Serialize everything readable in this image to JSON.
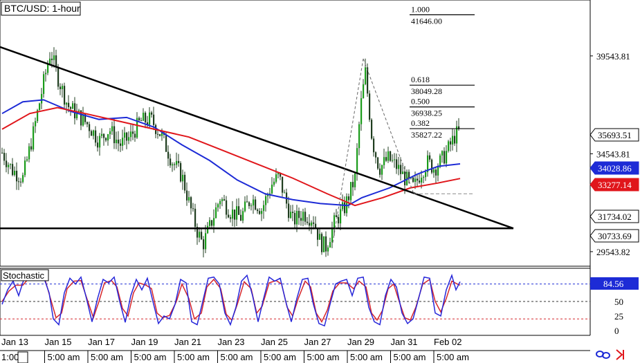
{
  "colors": {
    "up_candle": "#1a9b1a",
    "down_candle": "#1f3d1f",
    "ma_fast": "#1d2bd6",
    "ma_slow": "#e0161b",
    "trendline": "#000000",
    "fib_line": "#000000",
    "stoch_k": "#2626d9",
    "stoch_d": "#d6262b",
    "level_80": "#1d2bd6",
    "level_50": "#333333",
    "level_20": "#d6262b"
  },
  "chart_data": [
    {
      "type": "candlestick",
      "title": "BTC/USD: 1-hour",
      "price_scale": {
        "ylim": [
          28800,
          42400
        ],
        "tick_labels": [
          "39543.81",
          "34543.81",
          "29543.82"
        ]
      },
      "price_badges": [
        {
          "value": "35693.51",
          "style": "current"
        },
        {
          "value": "34028.86",
          "style": "blue"
        },
        {
          "value": "33277.14",
          "style": "red"
        },
        {
          "value": "31734.02",
          "style": "plain"
        },
        {
          "value": "30733.69",
          "style": "plain"
        }
      ],
      "fibonacci": [
        {
          "ratio": "1.000",
          "price": "41646.00"
        },
        {
          "ratio": "0.618",
          "price": "38049.28"
        },
        {
          "ratio": "0.500",
          "price": "36938.25"
        },
        {
          "ratio": "0.382",
          "price": "35827.22"
        }
      ],
      "horizontal_support": 30733.69,
      "close_path": [
        [
          0,
          34600
        ],
        [
          15,
          33700
        ],
        [
          30,
          33300
        ],
        [
          45,
          35600
        ],
        [
          60,
          38200
        ],
        [
          70,
          39800
        ],
        [
          80,
          38500
        ],
        [
          95,
          37000
        ],
        [
          110,
          36500
        ],
        [
          125,
          36000
        ],
        [
          140,
          35200
        ],
        [
          155,
          35800
        ],
        [
          170,
          35000
        ],
        [
          185,
          35400
        ],
        [
          200,
          36200
        ],
        [
          215,
          36300
        ],
        [
          230,
          35500
        ],
        [
          245,
          34200
        ],
        [
          260,
          33400
        ],
        [
          272,
          31800
        ],
        [
          282,
          30600
        ],
        [
          290,
          29900
        ],
        [
          300,
          30800
        ],
        [
          315,
          32300
        ],
        [
          330,
          31600
        ],
        [
          345,
          31300
        ],
        [
          360,
          32300
        ],
        [
          375,
          31700
        ],
        [
          390,
          33000
        ],
        [
          400,
          33400
        ],
        [
          410,
          32100
        ],
        [
          420,
          31100
        ],
        [
          435,
          31500
        ],
        [
          450,
          31200
        ],
        [
          460,
          30000
        ],
        [
          468,
          29800
        ],
        [
          480,
          31000
        ],
        [
          495,
          31800
        ],
        [
          510,
          33300
        ],
        [
          518,
          36900
        ],
        [
          525,
          38700
        ],
        [
          535,
          35200
        ],
        [
          545,
          33800
        ],
        [
          558,
          34300
        ],
        [
          570,
          33900
        ],
        [
          582,
          33300
        ],
        [
          595,
          32800
        ],
        [
          605,
          33600
        ],
        [
          615,
          34100
        ],
        [
          625,
          33800
        ],
        [
          635,
          34200
        ],
        [
          645,
          34800
        ],
        [
          655,
          35500
        ],
        [
          662,
          35700
        ]
      ],
      "ma_fast": [
        [
          0,
          36600
        ],
        [
          30,
          37200
        ],
        [
          60,
          37300
        ],
        [
          100,
          36700
        ],
        [
          140,
          36300
        ],
        [
          180,
          36400
        ],
        [
          220,
          35900
        ],
        [
          260,
          35000
        ],
        [
          300,
          34200
        ],
        [
          340,
          33200
        ],
        [
          380,
          32500
        ],
        [
          420,
          32200
        ],
        [
          460,
          32000
        ],
        [
          500,
          31900
        ],
        [
          520,
          32300
        ],
        [
          560,
          32800
        ],
        [
          600,
          33500
        ],
        [
          630,
          33900
        ],
        [
          662,
          34030
        ]
      ],
      "ma_slow": [
        [
          0,
          35800
        ],
        [
          40,
          36600
        ],
        [
          80,
          36900
        ],
        [
          120,
          36600
        ],
        [
          170,
          36200
        ],
        [
          220,
          35800
        ],
        [
          270,
          35400
        ],
        [
          320,
          34700
        ],
        [
          370,
          34000
        ],
        [
          420,
          33300
        ],
        [
          470,
          32500
        ],
        [
          510,
          31900
        ],
        [
          550,
          32300
        ],
        [
          590,
          32800
        ],
        [
          630,
          33050
        ],
        [
          662,
          33280
        ]
      ],
      "x_labels": [
        "Jan 13",
        "Jan 15",
        "Jan 17",
        "Jan 19",
        "Jan 21",
        "Jan 23",
        "Jan 25",
        "Jan 27",
        "Jan 29",
        "Jan 31",
        "Feb 02"
      ],
      "time_labels": [
        "1:00",
        "5:00 am",
        "5:00 am",
        "5:00 am",
        "5:00 am",
        "5:00 am",
        "5:00 am",
        "5:00 am",
        "5:00 am",
        "5:00 am",
        "5:00 am"
      ]
    },
    {
      "type": "line",
      "title": "Stochastic",
      "ylim": [
        0,
        100
      ],
      "tick_labels": [
        "50",
        "25",
        "0"
      ],
      "levels": [
        80,
        50,
        20
      ],
      "current_value": "84.56",
      "k_path": [
        [
          0,
          45
        ],
        [
          8,
          70
        ],
        [
          16,
          85
        ],
        [
          24,
          60
        ],
        [
          32,
          90
        ],
        [
          40,
          97
        ],
        [
          50,
          95
        ],
        [
          60,
          92
        ],
        [
          68,
          65
        ],
        [
          74,
          20
        ],
        [
          82,
          10
        ],
        [
          90,
          65
        ],
        [
          98,
          90
        ],
        [
          106,
          80
        ],
        [
          114,
          92
        ],
        [
          122,
          55
        ],
        [
          130,
          15
        ],
        [
          138,
          55
        ],
        [
          146,
          88
        ],
        [
          154,
          82
        ],
        [
          162,
          92
        ],
        [
          170,
          50
        ],
        [
          178,
          14
        ],
        [
          186,
          60
        ],
        [
          194,
          88
        ],
        [
          202,
          70
        ],
        [
          210,
          90
        ],
        [
          218,
          50
        ],
        [
          226,
          12
        ],
        [
          234,
          25
        ],
        [
          242,
          20
        ],
        [
          250,
          45
        ],
        [
          258,
          88
        ],
        [
          266,
          82
        ],
        [
          274,
          15
        ],
        [
          282,
          10
        ],
        [
          290,
          50
        ],
        [
          298,
          90
        ],
        [
          306,
          92
        ],
        [
          314,
          80
        ],
        [
          322,
          30
        ],
        [
          330,
          10
        ],
        [
          338,
          40
        ],
        [
          346,
          85
        ],
        [
          354,
          95
        ],
        [
          362,
          60
        ],
        [
          370,
          15
        ],
        [
          378,
          55
        ],
        [
          386,
          92
        ],
        [
          394,
          85
        ],
        [
          402,
          90
        ],
        [
          410,
          50
        ],
        [
          418,
          15
        ],
        [
          426,
          55
        ],
        [
          434,
          88
        ],
        [
          442,
          90
        ],
        [
          450,
          45
        ],
        [
          458,
          12
        ],
        [
          466,
          8
        ],
        [
          474,
          45
        ],
        [
          482,
          80
        ],
        [
          490,
          85
        ],
        [
          498,
          88
        ],
        [
          506,
          60
        ],
        [
          514,
          90
        ],
        [
          522,
          92
        ],
        [
          530,
          40
        ],
        [
          538,
          15
        ],
        [
          546,
          10
        ],
        [
          554,
          60
        ],
        [
          562,
          88
        ],
        [
          570,
          75
        ],
        [
          578,
          30
        ],
        [
          586,
          12
        ],
        [
          594,
          20
        ],
        [
          602,
          55
        ],
        [
          610,
          92
        ],
        [
          618,
          90
        ],
        [
          626,
          30
        ],
        [
          634,
          25
        ],
        [
          642,
          70
        ],
        [
          650,
          95
        ],
        [
          656,
          70
        ],
        [
          662,
          84
        ]
      ],
      "d_path": [
        [
          0,
          50
        ],
        [
          10,
          68
        ],
        [
          20,
          78
        ],
        [
          30,
          78
        ],
        [
          40,
          92
        ],
        [
          52,
          95
        ],
        [
          62,
          88
        ],
        [
          70,
          55
        ],
        [
          78,
          22
        ],
        [
          86,
          30
        ],
        [
          94,
          72
        ],
        [
          104,
          85
        ],
        [
          114,
          86
        ],
        [
          124,
          50
        ],
        [
          132,
          22
        ],
        [
          140,
          50
        ],
        [
          148,
          82
        ],
        [
          158,
          86
        ],
        [
          166,
          75
        ],
        [
          174,
          38
        ],
        [
          182,
          25
        ],
        [
          190,
          65
        ],
        [
          198,
          82
        ],
        [
          208,
          78
        ],
        [
          216,
          72
        ],
        [
          224,
          30
        ],
        [
          232,
          22
        ],
        [
          242,
          26
        ],
        [
          252,
          50
        ],
        [
          260,
          80
        ],
        [
          270,
          55
        ],
        [
          278,
          20
        ],
        [
          288,
          30
        ],
        [
          296,
          75
        ],
        [
          306,
          88
        ],
        [
          316,
          72
        ],
        [
          324,
          28
        ],
        [
          332,
          18
        ],
        [
          340,
          45
        ],
        [
          350,
          84
        ],
        [
          360,
          72
        ],
        [
          368,
          30
        ],
        [
          376,
          42
        ],
        [
          386,
          82
        ],
        [
          396,
          86
        ],
        [
          404,
          80
        ],
        [
          412,
          40
        ],
        [
          420,
          25
        ],
        [
          428,
          55
        ],
        [
          438,
          85
        ],
        [
          446,
          75
        ],
        [
          454,
          30
        ],
        [
          462,
          15
        ],
        [
          470,
          35
        ],
        [
          478,
          68
        ],
        [
          488,
          82
        ],
        [
          498,
          82
        ],
        [
          508,
          72
        ],
        [
          516,
          85
        ],
        [
          526,
          75
        ],
        [
          534,
          30
        ],
        [
          542,
          18
        ],
        [
          550,
          35
        ],
        [
          558,
          72
        ],
        [
          566,
          80
        ],
        [
          574,
          50
        ],
        [
          582,
          22
        ],
        [
          590,
          18
        ],
        [
          598,
          40
        ],
        [
          608,
          80
        ],
        [
          618,
          88
        ],
        [
          626,
          50
        ],
        [
          634,
          32
        ],
        [
          642,
          55
        ],
        [
          650,
          85
        ],
        [
          658,
          80
        ],
        [
          662,
          78
        ]
      ]
    }
  ]
}
